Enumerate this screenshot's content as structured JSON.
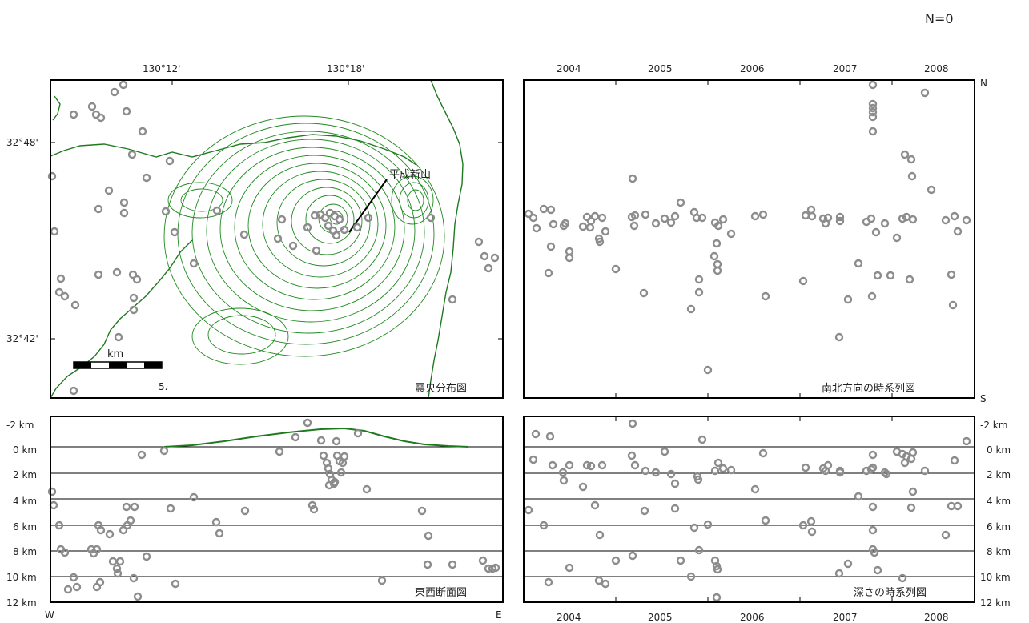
{
  "header": {
    "count_label": "N=0"
  },
  "colors": {
    "contour": "#1f8a1f",
    "event": "#8c8c8c"
  },
  "map": {
    "title": "震央分布図",
    "volcano_label": "平成新山",
    "lon_labels": [
      "130°12'",
      "130°18'"
    ],
    "lat_labels": [
      "32°48'",
      "32°42'"
    ],
    "scale_label": "km",
    "scale_value": "5."
  },
  "ns_time": {
    "title": "南北方向の時系列図",
    "north_label": "N",
    "south_label": "S",
    "year_labels": [
      "2004",
      "2005",
      "2006",
      "2007",
      "2008"
    ]
  },
  "ew_section": {
    "title": "東西断面図",
    "west_label": "W",
    "east_label": "E",
    "depth_labels": [
      "-2 km",
      "0 km",
      "2 km",
      "4 km",
      "6 km",
      "8 km",
      "10 km",
      "12 km"
    ]
  },
  "depth_time": {
    "title": "深さの時系列図",
    "depth_labels": [
      "-2 km",
      "0 km",
      "2 km",
      "4 km",
      "6 km",
      "8 km",
      "10 km",
      "12 km"
    ],
    "year_labels": [
      "2004",
      "2005",
      "2006",
      "2007",
      "2008"
    ]
  }
}
